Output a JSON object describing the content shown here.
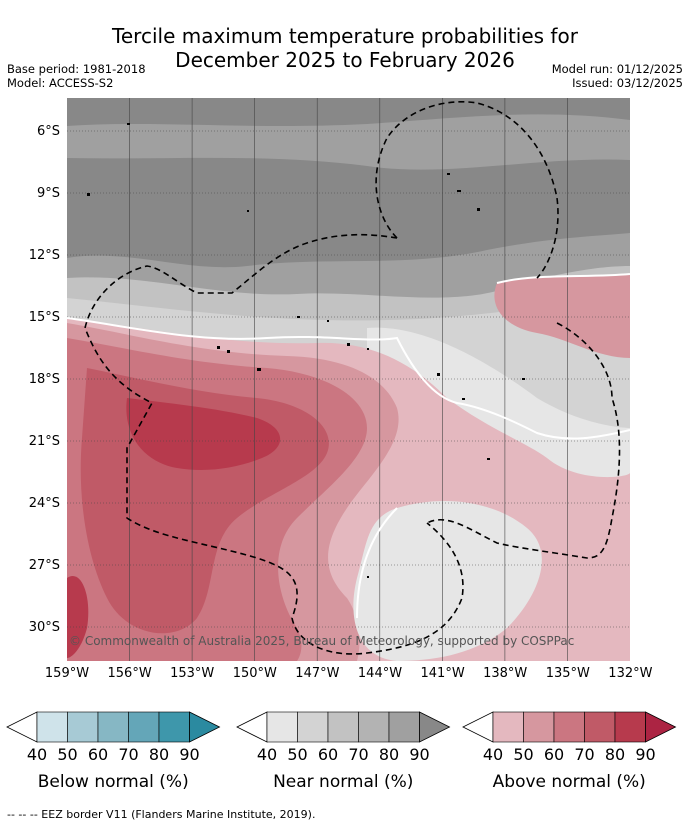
{
  "title": {
    "line1": "Tercile maximum temperature probabilities for",
    "line2": "December 2025 to February 2026"
  },
  "meta": {
    "base_period": "Base period: 1981-2018",
    "model": "Model: ACCESS-S2",
    "model_run": "Model run: 01/12/2025",
    "issued": "Issued: 03/12/2025"
  },
  "map": {
    "lat_labels": [
      "6°S",
      "9°S",
      "12°S",
      "15°S",
      "18°S",
      "21°S",
      "24°S",
      "27°S",
      "30°S"
    ],
    "lon_labels": [
      "159°W",
      "156°W",
      "153°W",
      "150°W",
      "147°W",
      "144°W",
      "141°W",
      "138°W",
      "135°W",
      "132°W"
    ],
    "lat_range": [
      5,
      32
    ],
    "lon_range": [
      -159,
      -132
    ],
    "copyright": "© Commonwealth of Australia 2025, Bureau of Meteorology, supported by COSPPac"
  },
  "colorbars": [
    {
      "label": "Below normal (%)",
      "ticks": [
        "40",
        "50",
        "60",
        "70",
        "80",
        "90"
      ],
      "colors": [
        "#ffffff",
        "#cfe3ea",
        "#a7cad5",
        "#86b7c4",
        "#64a6b8",
        "#3e97ab",
        "#2b8aa0"
      ]
    },
    {
      "label": "Near normal (%)",
      "ticks": [
        "40",
        "50",
        "60",
        "70",
        "80",
        "90"
      ],
      "colors": [
        "#ffffff",
        "#e6e6e6",
        "#d3d3d3",
        "#c2c2c2",
        "#b3b3b3",
        "#a0a0a0",
        "#888888"
      ]
    },
    {
      "label": "Above normal (%)",
      "ticks": [
        "40",
        "50",
        "60",
        "70",
        "80",
        "90"
      ],
      "colors": [
        "#ffffff",
        "#e4b8bf",
        "#d6979f",
        "#cb7681",
        "#c05a67",
        "#b73a4d",
        "#ac2443"
      ]
    }
  ],
  "footer": "--  --  -- EEZ border V11 (Flanders Marine Institute, 2019)."
}
